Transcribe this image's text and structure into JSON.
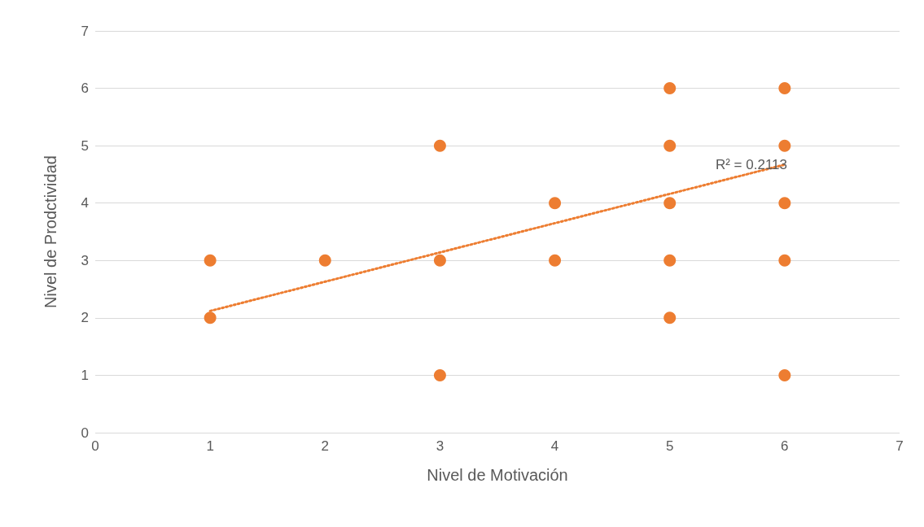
{
  "chart_data": {
    "type": "scatter",
    "xlabel": "Nivel de Motivación",
    "ylabel": "Nivel de Prodctividad",
    "series": [
      {
        "color": "#ed7d31",
        "marker": "circle",
        "x": [
          1,
          1,
          2,
          3,
          3,
          3,
          4,
          4,
          5,
          5,
          5,
          5,
          5,
          6,
          6,
          6,
          6,
          6
        ],
        "values": [
          3,
          2,
          3,
          5,
          3,
          1,
          4,
          3,
          6,
          5,
          4,
          3,
          2,
          6,
          5,
          4,
          3,
          1
        ]
      },
      {
        "type": "line",
        "color": "#ed7d31",
        "marker": "none",
        "line_style": "dotted",
        "x": [
          1,
          6
        ],
        "values": [
          2.12,
          4.67
        ]
      }
    ],
    "annotations": [
      "R² = 0.2113"
    ],
    "xlim": [
      0,
      7
    ],
    "xticks": [
      0,
      1,
      2,
      3,
      4,
      5,
      6,
      7
    ],
    "ylim": [
      0,
      7
    ],
    "yticks": [
      0,
      1,
      2,
      3,
      4,
      5,
      6,
      7
    ],
    "grid": "y"
  }
}
